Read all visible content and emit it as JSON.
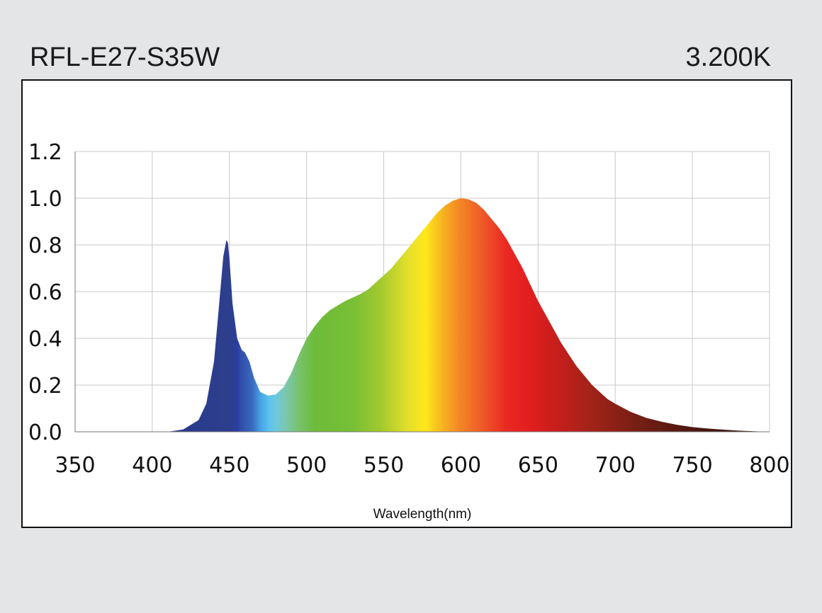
{
  "header": {
    "model": "RFL-E27-S35W",
    "cct": "3.200K"
  },
  "chart_data": {
    "type": "area",
    "title": "",
    "xlabel": "Wavelength(nm)",
    "ylabel": "",
    "xlim": [
      350,
      800
    ],
    "ylim": [
      0,
      1.2
    ],
    "xticks": [
      350,
      400,
      450,
      500,
      550,
      600,
      650,
      700,
      750,
      800
    ],
    "yticks": [
      "0.0",
      "0.2",
      "0.4",
      "0.6",
      "0.8",
      "1.0",
      "1.2"
    ],
    "grid": true,
    "fill": "visible-spectrum gradient",
    "series": [
      {
        "x": [
          350,
          400,
          410,
          420,
          430,
          435,
          440,
          443,
          446,
          448,
          449,
          450,
          452,
          455,
          458,
          460,
          463,
          466,
          470,
          475,
          480,
          485,
          490,
          495,
          500,
          505,
          510,
          515,
          520,
          525,
          530,
          535,
          540,
          545,
          550,
          555,
          560,
          565,
          570,
          575,
          580,
          585,
          590,
          595,
          600,
          605,
          610,
          615,
          620,
          625,
          630,
          635,
          640,
          645,
          650,
          655,
          660,
          665,
          670,
          675,
          680,
          685,
          690,
          695,
          700,
          710,
          720,
          730,
          740,
          750,
          760,
          770,
          780,
          790,
          800
        ],
        "y": [
          0,
          0,
          0,
          0.01,
          0.05,
          0.12,
          0.3,
          0.52,
          0.75,
          0.82,
          0.81,
          0.74,
          0.55,
          0.4,
          0.35,
          0.34,
          0.3,
          0.23,
          0.17,
          0.155,
          0.16,
          0.19,
          0.25,
          0.33,
          0.4,
          0.45,
          0.49,
          0.52,
          0.54,
          0.56,
          0.575,
          0.59,
          0.61,
          0.64,
          0.67,
          0.7,
          0.74,
          0.78,
          0.82,
          0.86,
          0.9,
          0.94,
          0.97,
          0.99,
          1.0,
          0.995,
          0.98,
          0.95,
          0.91,
          0.87,
          0.82,
          0.76,
          0.7,
          0.63,
          0.56,
          0.5,
          0.44,
          0.38,
          0.33,
          0.28,
          0.24,
          0.2,
          0.17,
          0.14,
          0.12,
          0.085,
          0.06,
          0.043,
          0.03,
          0.02,
          0.014,
          0.009,
          0.005,
          0.002,
          0
        ]
      }
    ]
  }
}
